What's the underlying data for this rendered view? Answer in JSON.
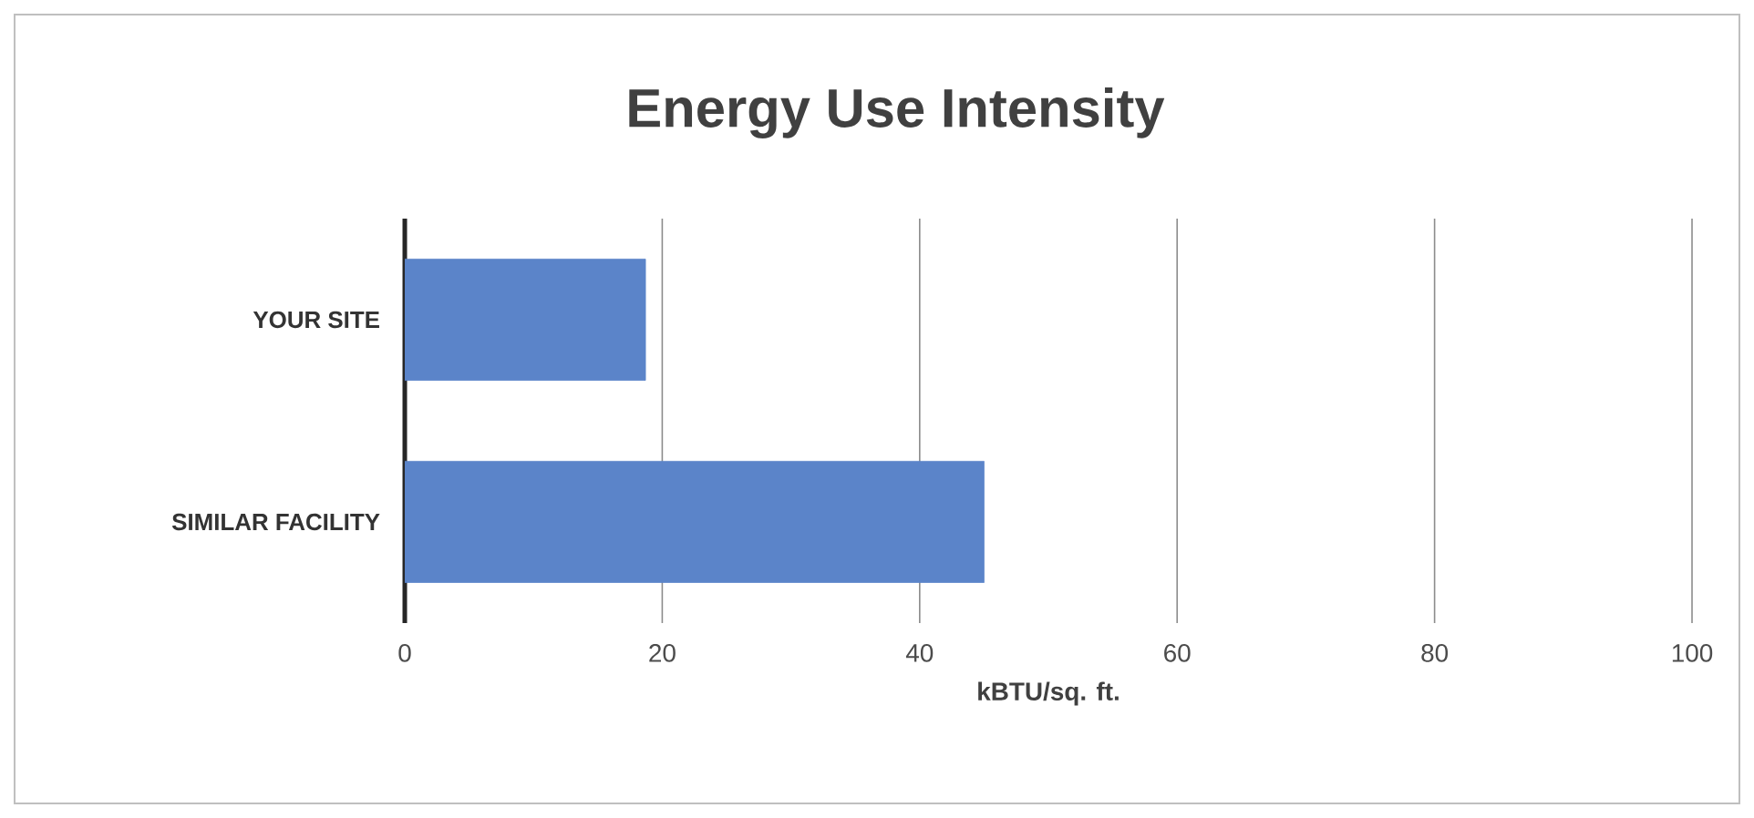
{
  "chart_data": {
    "type": "bar",
    "orientation": "horizontal",
    "title": "Energy Use Intensity",
    "categories": [
      "YOUR SITE",
      "SIMILAR FACILITY"
    ],
    "values": [
      18.7,
      45
    ],
    "color": "#5b84c9",
    "xlabel": "kBTU/sq. ft.",
    "xlim": [
      0,
      100
    ],
    "xticks": [
      0,
      20,
      40,
      60,
      80,
      100
    ],
    "grid": "x"
  }
}
